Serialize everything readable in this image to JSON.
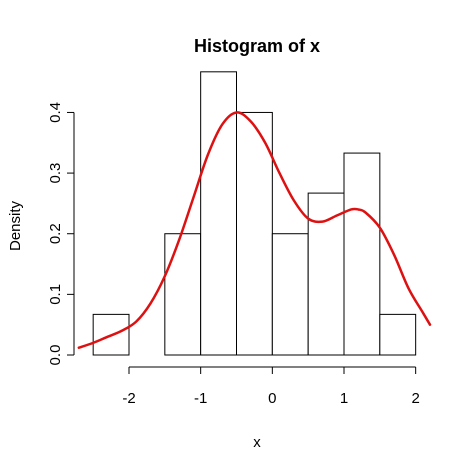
{
  "chart_data": {
    "type": "bar",
    "subtype": "histogram-with-density",
    "title": "Histogram of x",
    "xlabel": "x",
    "ylabel": "Density",
    "xlim": [
      -2.6,
      2.2
    ],
    "ylim": [
      0,
      0.47
    ],
    "x_ticks": [
      -2,
      -1,
      0,
      1,
      2
    ],
    "x_tick_labels": [
      "-2",
      "-1",
      "0",
      "1",
      "2"
    ],
    "y_ticks": [
      0.0,
      0.1,
      0.2,
      0.3,
      0.4
    ],
    "y_tick_labels": [
      "0.0",
      "0.1",
      "0.2",
      "0.3",
      "0.4"
    ],
    "grid": false,
    "bins": [
      {
        "start": -2.5,
        "end": -2.0,
        "density": 0.067
      },
      {
        "start": -2.0,
        "end": -1.5,
        "density": 0.0
      },
      {
        "start": -1.5,
        "end": -1.0,
        "density": 0.2
      },
      {
        "start": -1.0,
        "end": -0.5,
        "density": 0.467
      },
      {
        "start": -0.5,
        "end": 0.0,
        "density": 0.4
      },
      {
        "start": 0.0,
        "end": 0.5,
        "density": 0.2
      },
      {
        "start": 0.5,
        "end": 1.0,
        "density": 0.267
      },
      {
        "start": 1.0,
        "end": 1.5,
        "density": 0.333
      },
      {
        "start": 1.5,
        "end": 2.0,
        "density": 0.067
      }
    ],
    "density_curve": {
      "color": "#dd1111",
      "x": [
        -2.7,
        -2.5,
        -2.3,
        -2.1,
        -1.9,
        -1.7,
        -1.5,
        -1.3,
        -1.1,
        -0.9,
        -0.7,
        -0.5,
        -0.3,
        -0.1,
        0.1,
        0.3,
        0.5,
        0.7,
        0.9,
        1.1,
        1.2,
        1.3,
        1.5,
        1.7,
        1.9,
        2.1,
        2.2
      ],
      "y": [
        0.012,
        0.02,
        0.03,
        0.04,
        0.055,
        0.085,
        0.13,
        0.19,
        0.26,
        0.33,
        0.38,
        0.4,
        0.385,
        0.35,
        0.3,
        0.255,
        0.225,
        0.22,
        0.23,
        0.24,
        0.24,
        0.235,
        0.21,
        0.165,
        0.11,
        0.07,
        0.05
      ]
    }
  }
}
